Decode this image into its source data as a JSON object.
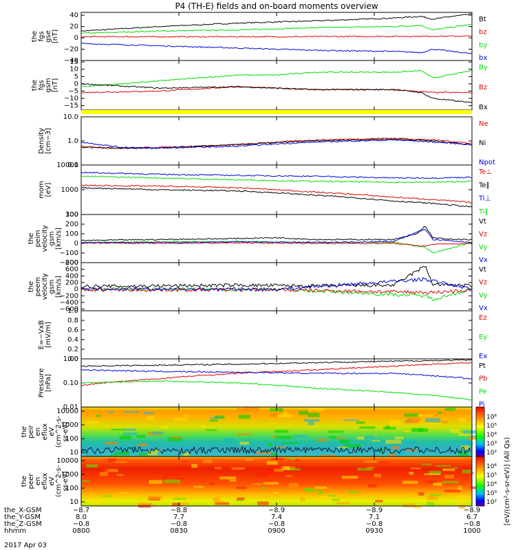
{
  "title": "P4 (TH-E) fields and on-board moments overview",
  "date": "2017 Apr 03",
  "colors": {
    "black": "#000000",
    "red": "#dd0000",
    "green": "#00dd00",
    "blue": "#0000dd",
    "yellow": "#ffff00"
  },
  "chart_data": [
    {
      "id": "fgs_gse",
      "type": "line",
      "ylabel": [
        "the",
        "fgs",
        "gse",
        "[nT]"
      ],
      "yticks": [
        "40",
        "20",
        "0",
        "−20",
        "−40"
      ],
      "ylim": [
        -40,
        45
      ],
      "legend": [
        {
          "text": "Bt",
          "color": "black"
        },
        {
          "text": "bz",
          "color": "red"
        },
        {
          "text": "by",
          "color": "green"
        },
        {
          "text": "bx",
          "color": "blue"
        }
      ],
      "series": [
        {
          "name": "Bt",
          "color": "black",
          "x": [
            0,
            0.2,
            0.4,
            0.6,
            0.8,
            0.87,
            0.9,
            0.95,
            1
          ],
          "y": [
            12,
            20,
            26,
            30,
            35,
            38,
            33,
            38,
            42
          ]
        },
        {
          "name": "by",
          "color": "green",
          "x": [
            0,
            0.2,
            0.4,
            0.6,
            0.8,
            0.87,
            0.9,
            1
          ],
          "y": [
            8,
            12,
            14,
            18,
            20,
            22,
            14,
            24
          ]
        },
        {
          "name": "bz",
          "color": "red",
          "x": [
            0,
            0.5,
            1
          ],
          "y": [
            2,
            2,
            3
          ]
        },
        {
          "name": "bx",
          "color": "blue",
          "x": [
            0,
            0.2,
            0.4,
            0.6,
            0.8,
            0.87,
            0.9,
            1
          ],
          "y": [
            -10,
            -14,
            -18,
            -22,
            -24,
            -26,
            -20,
            -28
          ]
        }
      ]
    },
    {
      "id": "fgs_gsm",
      "type": "line",
      "ylabel": [
        "the",
        "fgs",
        "gsm",
        "[nT]"
      ],
      "yticks": [
        "15",
        "10",
        "5",
        "0",
        "−5",
        "−10",
        "−15"
      ],
      "ylim": [
        -18,
        16
      ],
      "legend": [
        {
          "text": "By",
          "color": "green"
        },
        {
          "text": "Bz",
          "color": "red"
        },
        {
          "text": "Bx",
          "color": "black"
        }
      ],
      "series": [
        {
          "name": "By",
          "color": "green",
          "x": [
            0,
            0.1,
            0.2,
            0.3,
            0.4,
            0.5,
            0.6,
            0.7,
            0.8,
            0.87,
            0.9,
            1
          ],
          "y": [
            -2,
            0,
            2,
            4,
            6,
            6,
            8,
            8,
            8,
            9,
            4,
            9
          ]
        },
        {
          "name": "Bz",
          "color": "red",
          "x": [
            0,
            0.2,
            0.4,
            0.6,
            0.8,
            0.9,
            1
          ],
          "y": [
            -6,
            -5,
            -2,
            -4,
            -4,
            -6,
            -6
          ]
        },
        {
          "name": "Bx",
          "color": "black",
          "x": [
            0,
            0.2,
            0.4,
            0.6,
            0.8,
            0.87,
            0.9,
            1
          ],
          "y": [
            0,
            -3,
            -2,
            -4,
            -4,
            -6,
            -10,
            -13
          ]
        }
      ]
    },
    {
      "id": "density",
      "type": "line",
      "ylog": true,
      "ylabel": [
        "Density",
        "[cm−3]"
      ],
      "yticks": [
        "10.0",
        "1.0",
        "0.1"
      ],
      "ylim": [
        0.1,
        10
      ],
      "legend": [
        {
          "text": "Ne",
          "color": "red"
        },
        {
          "text": "Ni",
          "color": "black"
        },
        {
          "text": "Npot",
          "color": "blue"
        }
      ],
      "series": [
        {
          "name": "Ne",
          "color": "red",
          "x": [
            0,
            0.1,
            0.2,
            0.3,
            0.4,
            0.5,
            0.6,
            0.7,
            0.8,
            0.9,
            1
          ],
          "y": [
            0.6,
            0.5,
            0.55,
            0.6,
            0.7,
            0.9,
            1.1,
            1.2,
            1.3,
            1.1,
            0.8
          ]
        },
        {
          "name": "Ni",
          "color": "black",
          "x": [
            0,
            0.1,
            0.2,
            0.3,
            0.4,
            0.5,
            0.6,
            0.7,
            0.8,
            0.9,
            1
          ],
          "y": [
            0.55,
            0.5,
            0.5,
            0.6,
            0.7,
            0.85,
            1.0,
            1.1,
            1.2,
            1.0,
            0.7
          ]
        },
        {
          "name": "Npot",
          "color": "blue",
          "x": [
            0,
            0.05,
            0.1,
            0.2,
            0.4,
            0.6,
            0.8,
            1
          ],
          "y": [
            0.9,
            0.7,
            0.55,
            0.5,
            0.6,
            0.9,
            1.1,
            0.7
          ]
        }
      ]
    },
    {
      "id": "mom_temp",
      "type": "line",
      "ylog": true,
      "ylabel": [
        "mom",
        "[eV]"
      ],
      "yticks": [
        "10000",
        "1000",
        "100"
      ],
      "ylim": [
        100,
        10000
      ],
      "legend": [
        {
          "text": "Te⊥",
          "color": "red"
        },
        {
          "text": "Te∥",
          "color": "black"
        },
        {
          "text": "Ti⊥",
          "color": "blue"
        },
        {
          "text": "Ti∥",
          "color": "green"
        }
      ],
      "series": [
        {
          "name": "Ti⊥",
          "color": "blue",
          "x": [
            0,
            0.2,
            0.4,
            0.6,
            0.8,
            0.9,
            1
          ],
          "y": [
            5000,
            4200,
            3800,
            3500,
            3000,
            3000,
            3200
          ]
        },
        {
          "name": "Ti∥",
          "color": "green",
          "x": [
            0,
            0.2,
            0.4,
            0.6,
            0.8,
            0.9,
            1
          ],
          "y": [
            3500,
            3000,
            2500,
            2200,
            2000,
            2000,
            2200
          ]
        },
        {
          "name": "Te⊥",
          "color": "red",
          "x": [
            0,
            0.2,
            0.4,
            0.6,
            0.8,
            0.9,
            1
          ],
          "y": [
            1500,
            1400,
            1200,
            800,
            500,
            400,
            300
          ]
        },
        {
          "name": "Te∥",
          "color": "black",
          "x": [
            0,
            0.2,
            0.4,
            0.6,
            0.8,
            0.9,
            1
          ],
          "y": [
            1200,
            1000,
            900,
            600,
            350,
            280,
            200
          ]
        }
      ]
    },
    {
      "id": "peim_velocity",
      "type": "line",
      "ylabel": [
        "the",
        "peim",
        "velocity",
        "gsm",
        "[km/s]"
      ],
      "yticks": [
        "300",
        "200",
        "100",
        "0",
        "−100",
        "−200"
      ],
      "ylim": [
        -200,
        300
      ],
      "legend": [
        {
          "text": "Vt",
          "color": "black"
        },
        {
          "text": "Vz",
          "color": "red"
        },
        {
          "text": "Vy",
          "color": "green"
        },
        {
          "text": "Vx",
          "color": "blue"
        }
      ],
      "series": [
        {
          "name": "Vt",
          "color": "black",
          "x": [
            0,
            0.2,
            0.4,
            0.5,
            0.6,
            0.8,
            0.86,
            0.88,
            0.9,
            0.95,
            1
          ],
          "y": [
            30,
            40,
            50,
            60,
            40,
            40,
            100,
            180,
            60,
            40,
            40
          ]
        },
        {
          "name": "Vy",
          "color": "green",
          "x": [
            0,
            0.2,
            0.4,
            0.6,
            0.8,
            0.88,
            0.9,
            1
          ],
          "y": [
            10,
            15,
            20,
            10,
            10,
            -40,
            -100,
            10
          ]
        },
        {
          "name": "Vz",
          "color": "red",
          "x": [
            0,
            0.2,
            0.4,
            0.6,
            0.8,
            0.88,
            0.9,
            1
          ],
          "y": [
            5,
            0,
            5,
            0,
            0,
            -30,
            -10,
            0
          ]
        },
        {
          "name": "Vx",
          "color": "blue",
          "x": [
            0,
            0.2,
            0.4,
            0.6,
            0.8,
            0.88,
            0.9,
            1
          ],
          "y": [
            10,
            10,
            15,
            10,
            20,
            150,
            40,
            10
          ]
        }
      ]
    },
    {
      "id": "peem_velocity",
      "type": "line",
      "ylabel": [
        "the",
        "peem",
        "velocity",
        "gsm",
        "[km/s]"
      ],
      "yticks": [
        "800",
        "600",
        "400",
        "200",
        "0",
        "−200",
        "−400",
        "−600"
      ],
      "ylim": [
        -650,
        800
      ],
      "legend": [
        {
          "text": "Vt",
          "color": "black"
        },
        {
          "text": "Vz",
          "color": "red"
        },
        {
          "text": "Vy",
          "color": "green"
        },
        {
          "text": "Vx",
          "color": "blue"
        }
      ],
      "series": [
        {
          "name": "Vt",
          "color": "black",
          "x": [
            0,
            0.2,
            0.4,
            0.6,
            0.8,
            0.88,
            0.9,
            1
          ],
          "y": [
            80,
            100,
            120,
            100,
            120,
            700,
            150,
            100
          ]
        },
        {
          "name": "Vy",
          "color": "green",
          "x": [
            0,
            0.5,
            0.88,
            0.9,
            1
          ],
          "y": [
            0,
            0,
            -200,
            -300,
            0
          ]
        },
        {
          "name": "Vz",
          "color": "red",
          "x": [
            0,
            0.5,
            0.9,
            1
          ],
          "y": [
            -20,
            -20,
            -100,
            -20
          ]
        },
        {
          "name": "Vx",
          "color": "blue",
          "x": [
            0,
            0.5,
            0.88,
            1
          ],
          "y": [
            0,
            0,
            300,
            0
          ]
        }
      ]
    },
    {
      "id": "e_vxb",
      "type": "line",
      "ylabel": [
        "E=−VxB",
        "[mV/m]"
      ],
      "yticks": [
        "1.0",
        "0.8",
        "0.6",
        "0.4",
        "0.2",
        "0.0"
      ],
      "ylim": [
        0,
        1
      ],
      "legend": [
        {
          "text": "Ez",
          "color": "red"
        },
        {
          "text": "Ey",
          "color": "green"
        },
        {
          "text": "Ex",
          "color": "blue"
        }
      ],
      "series": []
    },
    {
      "id": "pressure",
      "type": "line",
      "ylog": true,
      "ylabel": [
        "Pressure",
        "[nPa]"
      ],
      "yticks": [
        "1.00",
        "0.10",
        "0.01"
      ],
      "ylim": [
        0.01,
        1
      ],
      "legend": [
        {
          "text": "Pt",
          "color": "black"
        },
        {
          "text": "Pb",
          "color": "red"
        },
        {
          "text": "Pe",
          "color": "green"
        },
        {
          "text": "Pi",
          "color": "blue"
        }
      ],
      "series": [
        {
          "name": "Pt",
          "color": "black",
          "x": [
            0,
            0.2,
            0.4,
            0.6,
            0.8,
            1
          ],
          "y": [
            0.5,
            0.55,
            0.6,
            0.7,
            0.8,
            0.9
          ]
        },
        {
          "name": "Pb",
          "color": "red",
          "x": [
            0,
            0.2,
            0.4,
            0.6,
            0.8,
            1
          ],
          "y": [
            0.08,
            0.15,
            0.25,
            0.35,
            0.5,
            0.7
          ]
        },
        {
          "name": "Pi",
          "color": "blue",
          "x": [
            0,
            0.2,
            0.4,
            0.6,
            0.8,
            0.9,
            1
          ],
          "y": [
            0.35,
            0.3,
            0.28,
            0.25,
            0.25,
            0.2,
            0.15
          ]
        },
        {
          "name": "Pe",
          "color": "green",
          "x": [
            0,
            0.2,
            0.4,
            0.6,
            0.8,
            0.9,
            1
          ],
          "y": [
            0.1,
            0.12,
            0.1,
            0.06,
            0.04,
            0.03,
            0.02
          ]
        }
      ]
    },
    {
      "id": "peir_eflux",
      "type": "heatmap",
      "ylabel": [
        "the",
        "peir",
        "en",
        "eflux",
        "eV",
        "(cm^2-s-",
        "sr-eV)"
      ],
      "yticks": [
        "10000",
        "1000",
        "100",
        "10"
      ],
      "colorbar_ticks": [
        "10⁶",
        "10⁵",
        "10⁴",
        "10³",
        "10²"
      ]
    },
    {
      "id": "peer_eflux",
      "type": "heatmap",
      "ylabel": [
        "the",
        "peer",
        "en",
        "eflux",
        "eV",
        "(cm^2-s-",
        "sr-eV)"
      ],
      "yticks": [
        "10000",
        "1000",
        "100",
        "10"
      ],
      "colorbar_ticks": [
        "10⁶",
        "10⁵",
        "10⁴",
        "10³",
        "10²"
      ]
    }
  ],
  "colorbar_label": "[eV/(cm²-s-sr-eV)] (All Qs)",
  "x_axis": {
    "rows": [
      {
        "label": "the_X-GSM",
        "values": [
          "−8.7",
          "−8.8",
          "−8.9",
          "−8.9",
          "−8.9"
        ]
      },
      {
        "label": "the_Y-GSM",
        "values": [
          "8.0",
          "7.7",
          "7.4",
          "7.1",
          "6.7"
        ]
      },
      {
        "label": "the_Z-GSM",
        "values": [
          "−0.8",
          "−0.8",
          "−0.8",
          "−0.8",
          "−0.8"
        ]
      },
      {
        "label": "hhmm",
        "values": [
          "0800",
          "0830",
          "0900",
          "0930",
          "1000"
        ]
      }
    ]
  }
}
